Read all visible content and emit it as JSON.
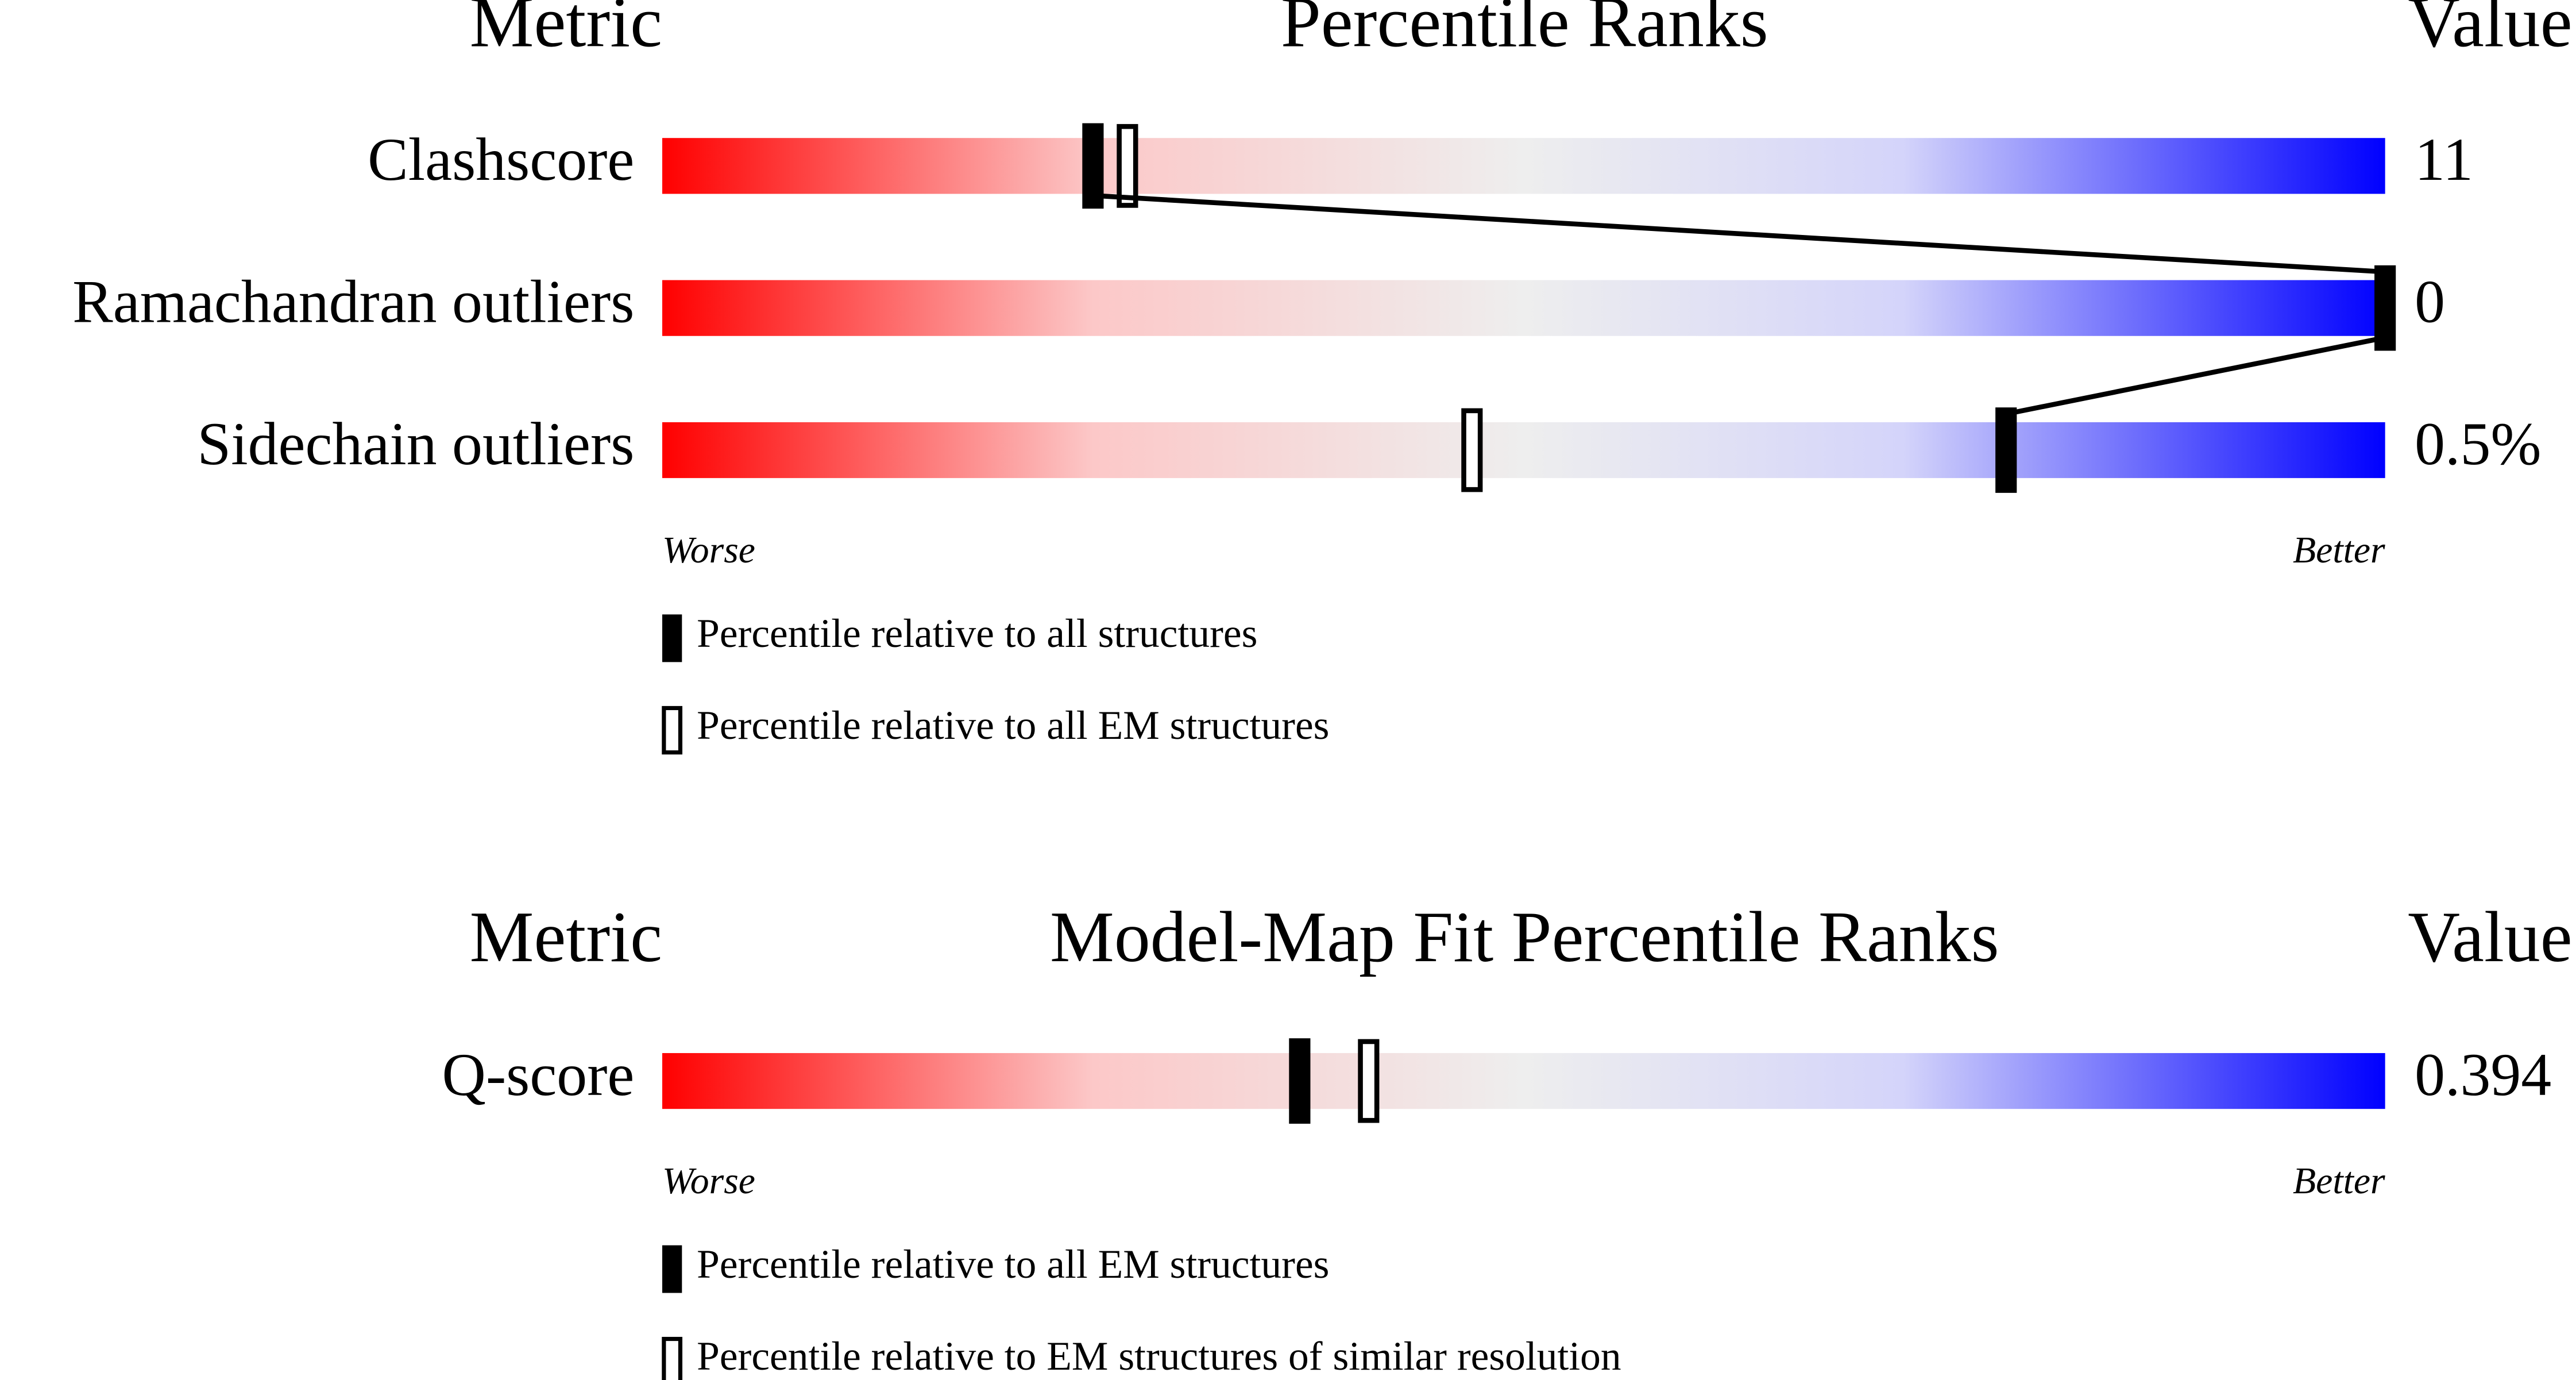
{
  "chart_data": [
    {
      "type": "slider",
      "metric_header": "Metric",
      "title": "Percentile Ranks",
      "value_header": "Value",
      "categories": [
        "Clashscore",
        "Ramachandran outliers",
        "Sidechain outliers"
      ],
      "metric_values": [
        11,
        0,
        {
          "value": 0.5,
          "label": "0.5%"
        }
      ],
      "xlim": [
        0,
        100
      ],
      "axis_labels": [
        "Worse",
        "Better"
      ],
      "series": [
        {
          "name": "Percentile relative to all structures",
          "style": "filled",
          "color": "#000000",
          "connected": true,
          "values": [
            25,
            100,
            78
          ]
        },
        {
          "name": "Percentile relative to all EM structures",
          "style": "open",
          "color": "#000000",
          "values": [
            27,
            null,
            47
          ]
        }
      ]
    },
    {
      "type": "slider",
      "metric_header": "Metric",
      "title": "Model-Map Fit Percentile Ranks",
      "value_header": "Value",
      "categories": [
        "Q-score"
      ],
      "metric_values": [
        0.394
      ],
      "xlim": [
        0,
        100
      ],
      "axis_labels": [
        "Worse",
        "Better"
      ],
      "series": [
        {
          "name": "Percentile relative to all EM structures",
          "style": "filled",
          "color": "#000000",
          "values": [
            37
          ]
        },
        {
          "name": "Percentile relative to EM structures of similar resolution",
          "style": "open",
          "color": "#000000",
          "values": [
            41
          ]
        }
      ]
    }
  ]
}
